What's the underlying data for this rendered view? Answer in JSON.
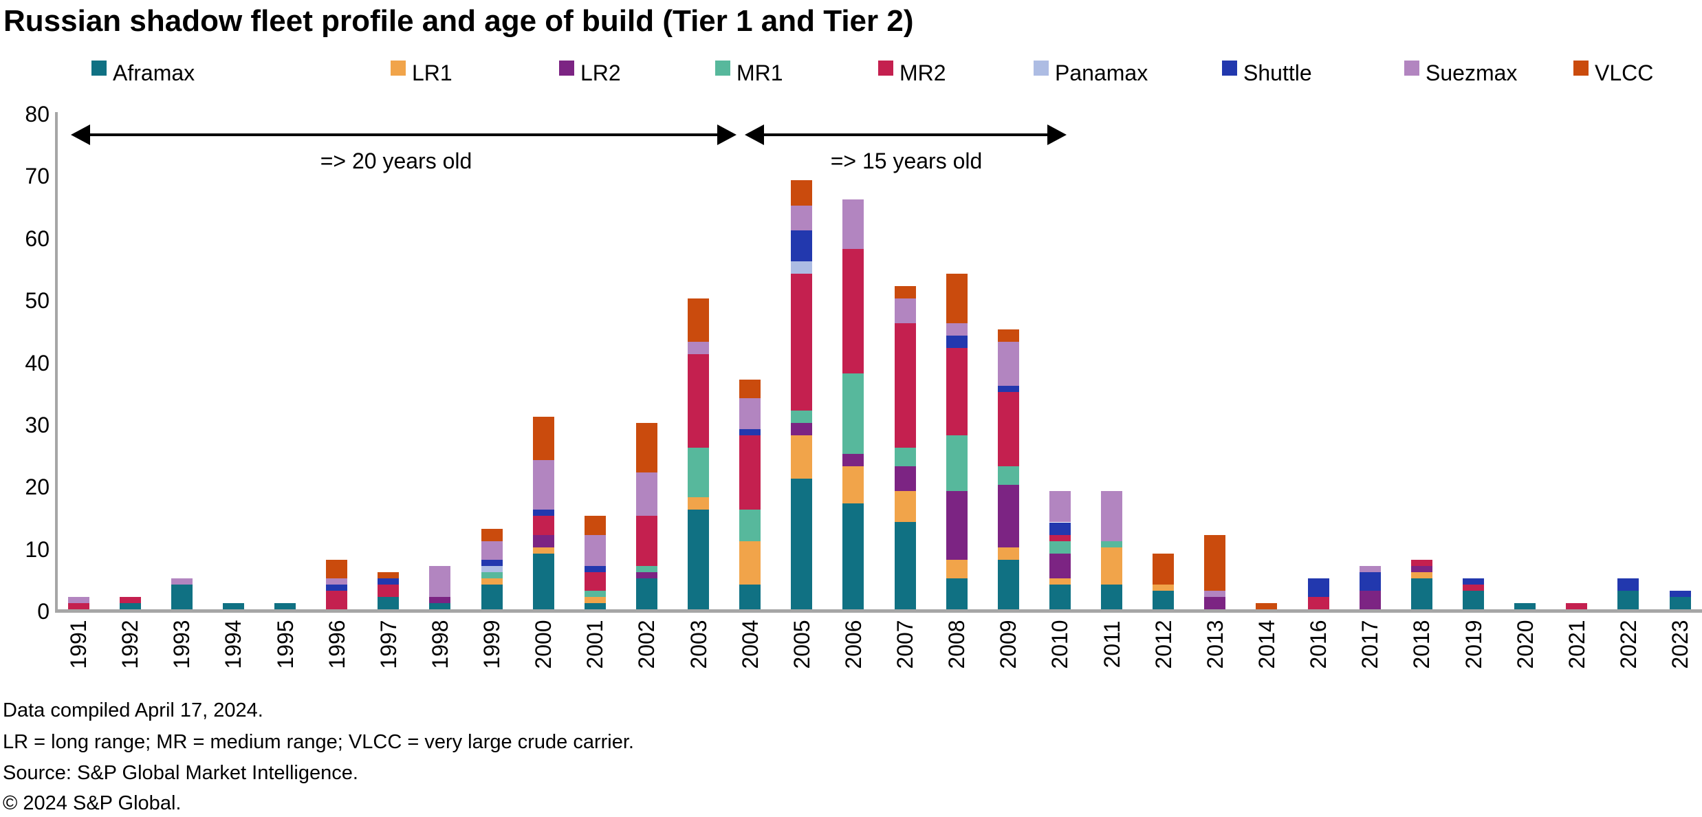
{
  "title": "Russian shadow fleet profile and age of build (Tier 1 and Tier 2)",
  "annotations": [
    {
      "label": "=> 20 years old"
    },
    {
      "label": "=> 15 years old"
    }
  ],
  "footnotes": [
    "Data compiled April 17, 2024.",
    "LR = long range; MR = medium range; VLCC = very large crude carrier.",
    "Source: S&P Global Market Intelligence.",
    "© 2024 S&P Global."
  ],
  "colors": {
    "axis": "#a6a6a6",
    "text": "#000000",
    "arrow": "#000000"
  },
  "chart_data": {
    "type": "bar",
    "stacked": true,
    "title": "Russian shadow fleet profile and age of build (Tier 1 and Tier 2)",
    "xlabel": "",
    "ylabel": "",
    "ylim": [
      0,
      80
    ],
    "yticks": [
      0,
      10,
      20,
      30,
      40,
      50,
      60,
      70,
      80
    ],
    "grid": false,
    "legend_position": "top",
    "categories": [
      "1991",
      "1992",
      "1993",
      "1994",
      "1995",
      "1996",
      "1997",
      "1998",
      "1999",
      "2000",
      "2001",
      "2002",
      "2003",
      "2004",
      "2005",
      "2006",
      "2007",
      "2008",
      "2009",
      "2010",
      "2011",
      "2012",
      "2013",
      "2014",
      "2016",
      "2017",
      "2018",
      "2019",
      "2020",
      "2021",
      "2022",
      "2023"
    ],
    "series": [
      {
        "name": "Aframax",
        "color": "#107183",
        "values": [
          0,
          1,
          4,
          1,
          1,
          0,
          2,
          1,
          4,
          9,
          1,
          5,
          16,
          4,
          21,
          17,
          14,
          5,
          8,
          4,
          4,
          3,
          0,
          0,
          0,
          0,
          5,
          3,
          1,
          0,
          3,
          2
        ]
      },
      {
        "name": "LR1",
        "color": "#f1a44a",
        "values": [
          0,
          0,
          0,
          0,
          0,
          0,
          0,
          0,
          1,
          1,
          1,
          0,
          2,
          7,
          7,
          6,
          5,
          3,
          2,
          1,
          6,
          1,
          0,
          0,
          0,
          0,
          1,
          0,
          0,
          0,
          0,
          0
        ]
      },
      {
        "name": "LR2",
        "color": "#7c2483",
        "values": [
          0,
          0,
          0,
          0,
          0,
          0,
          0,
          1,
          0,
          2,
          0,
          1,
          0,
          0,
          2,
          2,
          4,
          11,
          10,
          4,
          0,
          0,
          2,
          0,
          0,
          3,
          1,
          0,
          0,
          0,
          0,
          0
        ]
      },
      {
        "name": "MR1",
        "color": "#57b89c",
        "values": [
          0,
          0,
          0,
          0,
          0,
          0,
          0,
          0,
          1,
          0,
          1,
          1,
          8,
          5,
          2,
          13,
          3,
          9,
          3,
          2,
          1,
          0,
          0,
          0,
          0,
          0,
          0,
          0,
          0,
          0,
          0,
          0
        ]
      },
      {
        "name": "MR2",
        "color": "#c4204f",
        "values": [
          1,
          1,
          0,
          0,
          0,
          3,
          2,
          0,
          0,
          3,
          3,
          8,
          15,
          12,
          22,
          20,
          20,
          14,
          12,
          1,
          0,
          0,
          0,
          0,
          2,
          0,
          1,
          1,
          0,
          1,
          0,
          0
        ]
      },
      {
        "name": "Panamax",
        "color": "#adbce3",
        "values": [
          0,
          0,
          0,
          0,
          0,
          0,
          0,
          0,
          1,
          0,
          0,
          0,
          0,
          0,
          2,
          0,
          0,
          0,
          0,
          0,
          0,
          0,
          0,
          0,
          0,
          0,
          0,
          0,
          0,
          0,
          0,
          0
        ]
      },
      {
        "name": "Shuttle",
        "color": "#2238ae",
        "values": [
          0,
          0,
          0,
          0,
          0,
          1,
          1,
          0,
          1,
          1,
          1,
          0,
          0,
          1,
          5,
          0,
          0,
          2,
          1,
          2,
          0,
          0,
          0,
          0,
          3,
          3,
          0,
          1,
          0,
          0,
          2,
          1
        ]
      },
      {
        "name": "Suezmax",
        "color": "#b285c0",
        "values": [
          1,
          0,
          1,
          0,
          0,
          1,
          0,
          5,
          3,
          8,
          5,
          7,
          2,
          5,
          4,
          8,
          4,
          2,
          7,
          5,
          8,
          0,
          1,
          0,
          0,
          1,
          0,
          0,
          0,
          0,
          0,
          0
        ]
      },
      {
        "name": "VLCC",
        "color": "#ca4b0d",
        "values": [
          0,
          0,
          0,
          0,
          0,
          3,
          1,
          0,
          2,
          7,
          3,
          8,
          7,
          3,
          4,
          0,
          2,
          8,
          2,
          0,
          0,
          5,
          9,
          1,
          0,
          0,
          0,
          0,
          0,
          0,
          0,
          0
        ]
      }
    ]
  }
}
